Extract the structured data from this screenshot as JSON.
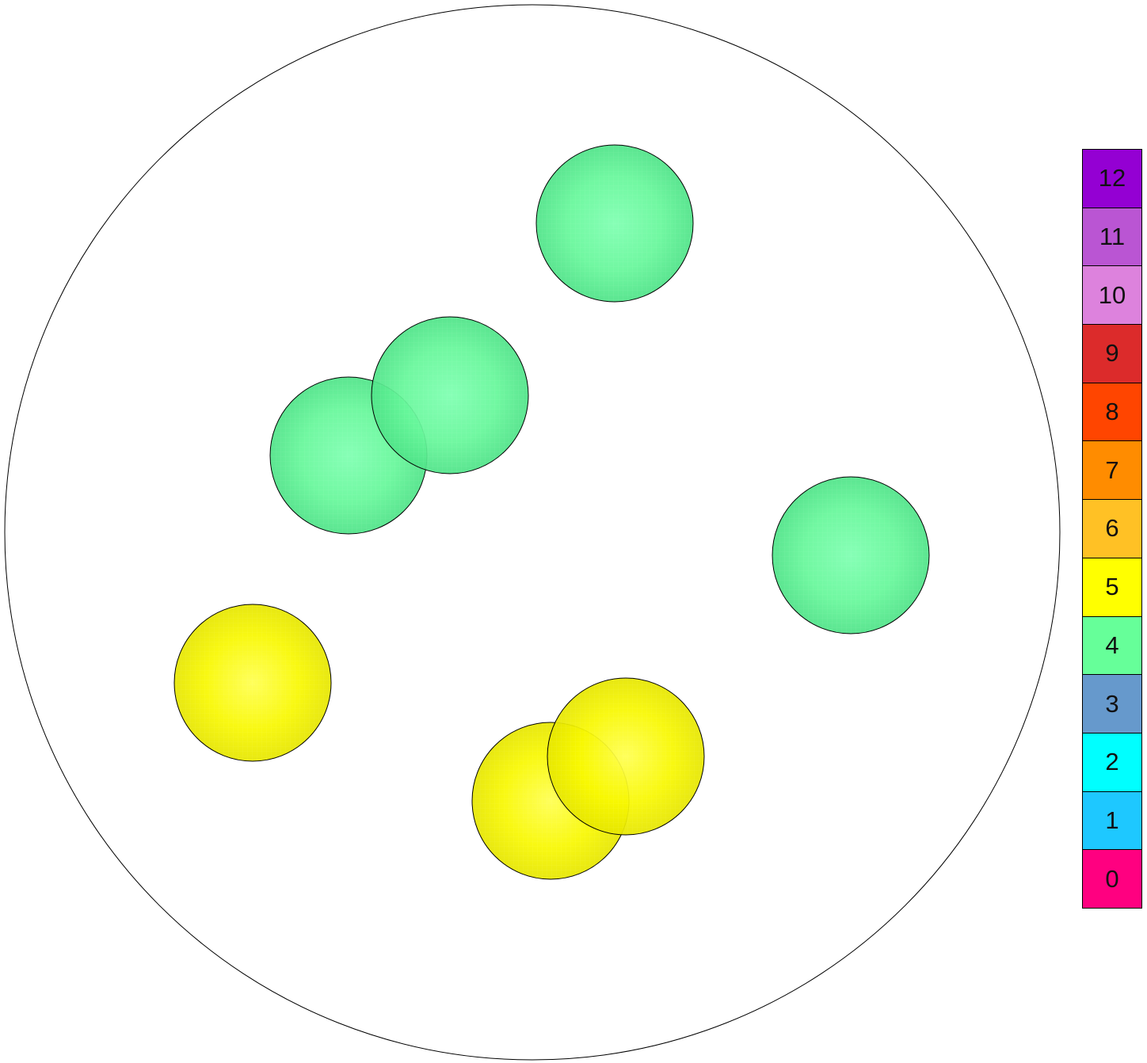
{
  "legend": [
    {
      "label": "12",
      "color": "#9400D3"
    },
    {
      "label": "11",
      "color": "#BA55D3"
    },
    {
      "label": "10",
      "color": "#DD82DD"
    },
    {
      "label": "9",
      "color": "#DC2B2B"
    },
    {
      "label": "8",
      "color": "#FF4500"
    },
    {
      "label": "7",
      "color": "#FF8C00"
    },
    {
      "label": "6",
      "color": "#FFC125"
    },
    {
      "label": "5",
      "color": "#FFFF00"
    },
    {
      "label": "4",
      "color": "#66FF99"
    },
    {
      "label": "3",
      "color": "#6699CC"
    },
    {
      "label": "2",
      "color": "#00FFFF"
    },
    {
      "label": "1",
      "color": "#1EC8FF"
    },
    {
      "label": "0",
      "color": "#FF0080"
    }
  ],
  "spheres": [
    {
      "value": 4
    },
    {
      "value": 4
    },
    {
      "value": 4
    },
    {
      "value": 4
    },
    {
      "value": 5
    },
    {
      "value": 5
    },
    {
      "value": 5
    }
  ]
}
